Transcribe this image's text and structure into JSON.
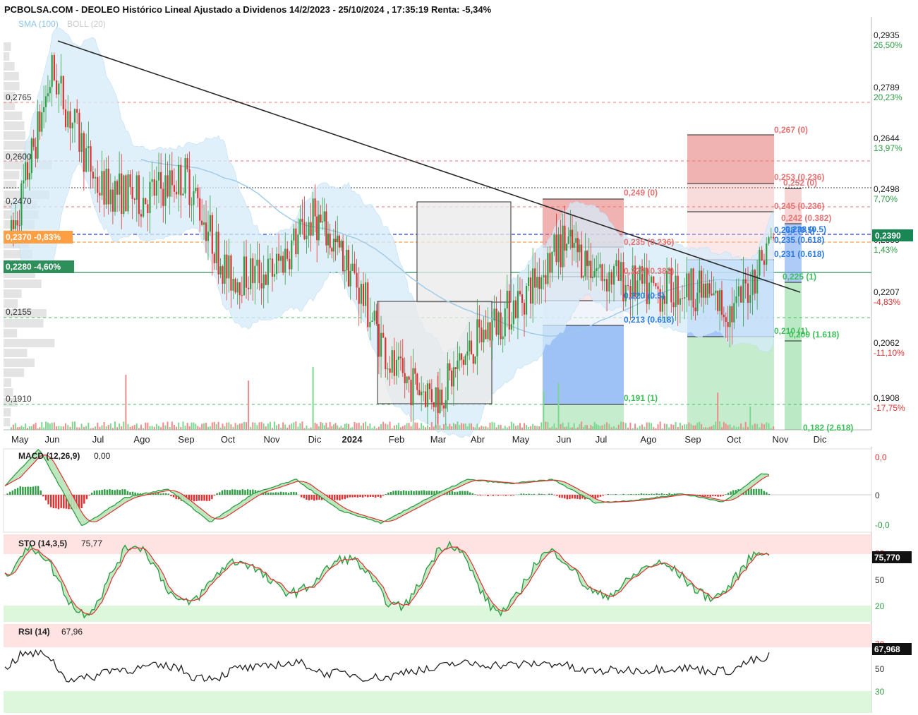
{
  "header": {
    "title": "PCBOLSA.COM - DEOLEO Histórico Lineal Ajustado a Dividenos 14/2/2023 - 25/10/2024 , 17:35:19 Renta: -5,34%",
    "legend_sma": "SMA (100)",
    "legend_boll": "BOLL (20)"
  },
  "colors": {
    "up": "#2f9e44",
    "down": "#e03131",
    "sma": "#9ccae9",
    "boll_fill": "#d6ebfa",
    "fib_red": "#e57373",
    "fib_blue": "#2c7be5",
    "fib_green": "#3fbf5a",
    "trendline": "#333333"
  },
  "price_axis": {
    "ticks": [
      {
        "price": "0,2935",
        "pct": "26,50%"
      },
      {
        "price": "0,2789",
        "pct": "20,23%"
      },
      {
        "price": "0,2644",
        "pct": "13,97%"
      },
      {
        "price": "0,2498",
        "pct": "7,70%"
      },
      {
        "price": "0,2353",
        "pct": "1,43%"
      },
      {
        "price": "0,2207",
        "pct": "-4,83%"
      },
      {
        "price": "0,2062",
        "pct": "-11,10%"
      },
      {
        "price": "0,1908",
        "pct": "-17,75%"
      }
    ],
    "current_label": "0,2390"
  },
  "left_labels": {
    "levels": [
      "0,2765",
      "0,2600",
      "0,2470",
      "0,2155",
      "0,1910"
    ],
    "orange_tag": "0,2370 -0,83%",
    "green_tag": "0,2280 -4,60%"
  },
  "months": [
    "May",
    "Jun",
    "Jul",
    "Ago",
    "Sep",
    "Oct",
    "Nov",
    "Dic",
    "2024",
    "Feb",
    "Mar",
    "Abr",
    "May",
    "Jun",
    "Jul",
    "Ago",
    "Sep",
    "Oct",
    "Nov",
    "Dic"
  ],
  "fib_labels": [
    "0,249 (0)",
    "0,235 (0.236)",
    "0,227 (0.382)",
    "0,220 (0.5)",
    "0,213 (0.618)",
    "0,191 (1)",
    "0,267 (0)",
    "0,253 (0.236)",
    "0,245 (0.236)",
    "0,242 (0.382)",
    "0,252 (0)",
    "0,238 (0.5)",
    "0,238 (0.5)",
    "0,235 (0.618)",
    "0,231 (0.618)",
    "0,225 (1)",
    "0,210 (1)",
    "0,209 (1.618)",
    "0,182 (2.618)"
  ],
  "macd": {
    "label": "MACD (12,26,9)",
    "value": "0,00",
    "ticks": [
      "0,0",
      "0",
      "-0,0"
    ]
  },
  "sto": {
    "label": "STO (14,3,5)",
    "value": "75,77",
    "current": "75,770",
    "ticks": [
      "80",
      "50",
      "20"
    ]
  },
  "rsi": {
    "label": "RSI (14)",
    "value": "67,96",
    "current": "67,968",
    "ticks": [
      "70",
      "50",
      "30"
    ]
  },
  "chart_data": {
    "type": "candlestick",
    "title": "DEOLEO Histórico Lineal Ajustado a Dividenos 14/2/2023 - 25/10/2024",
    "price_range": [
      0.1868,
      0.2975
    ],
    "x_range": [
      "May 2023",
      "Dic 2024"
    ],
    "approx_close_path": [
      {
        "month": "May",
        "close": 0.238
      },
      {
        "month": "Jun",
        "close": 0.283
      },
      {
        "month": "Jul",
        "close": 0.252
      },
      {
        "month": "Ago",
        "close": 0.249
      },
      {
        "month": "Sep",
        "close": 0.255
      },
      {
        "month": "Oct",
        "close": 0.228
      },
      {
        "month": "Nov",
        "close": 0.229
      },
      {
        "month": "Dic",
        "close": 0.244
      },
      {
        "month": "2024",
        "close": 0.229
      },
      {
        "month": "Feb",
        "close": 0.201
      },
      {
        "month": "Mar",
        "close": 0.196
      },
      {
        "month": "Abr",
        "close": 0.211
      },
      {
        "month": "May",
        "close": 0.222
      },
      {
        "month": "Jun",
        "close": 0.237
      },
      {
        "month": "Jul",
        "close": 0.229
      },
      {
        "month": "Ago",
        "close": 0.224
      },
      {
        "month": "Sep",
        "close": 0.225
      },
      {
        "month": "Oct",
        "close": 0.218
      },
      {
        "month": "Oct-end",
        "close": 0.239
      }
    ],
    "trendline": {
      "from": {
        "month": "Jun 2023",
        "price": 0.2945
      },
      "to": {
        "month": "Nov 2024",
        "price": 0.2215
      }
    },
    "last_price": 0.239
  }
}
